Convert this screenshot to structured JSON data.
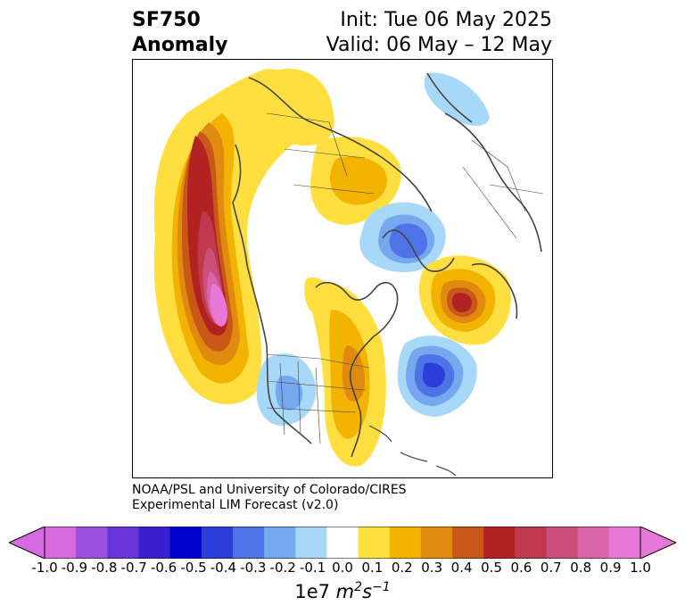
{
  "title": {
    "left_line1": "SF750",
    "left_line2": "Anomaly",
    "right_line1": "Init: Tue 06 May 2025",
    "right_line2": "Valid: 06 May – 12 May"
  },
  "credit": {
    "line1": "NOAA/PSL and University of Colorado/CIRES",
    "line2": "Experimental LIM Forecast (v2.0)"
  },
  "colorbar": {
    "units_prefix": "1e7",
    "units_m": "m",
    "units_m_exp": "2",
    "units_s": "s",
    "units_s_exp": "−1",
    "ticks": [
      "-1.0",
      "-0.9",
      "-0.8",
      "-0.7",
      "-0.6",
      "-0.5",
      "-0.4",
      "-0.3",
      "-0.2",
      "-0.1",
      "0.0",
      "0.1",
      "0.2",
      "0.3",
      "0.4",
      "0.5",
      "0.6",
      "0.7",
      "0.8",
      "0.9",
      "1.0"
    ],
    "colors": [
      "#d86ae0",
      "#9b4fde",
      "#6a35d8",
      "#3a1fd0",
      "#0000cc",
      "#2a3fd8",
      "#4e73e6",
      "#75a8ef",
      "#a8d8f8",
      "#ffffff",
      "#ffdf40",
      "#f2b400",
      "#e08a10",
      "#c95718",
      "#b22222",
      "#c0384c",
      "#cb4f7a",
      "#d865aa",
      "#e878d8"
    ]
  },
  "map_legend": {
    "contour_colors": {
      "yellow": "#ffdf40",
      "gold": "#f2b400",
      "orange": "#e08a10",
      "dark_orange": "#c95718",
      "red": "#b22222",
      "crimson": "#c0384c",
      "rose": "#cb4f7a",
      "pink": "#d865aa",
      "magenta": "#e878d8",
      "light_blue": "#a8d8f8",
      "sky_blue": "#75a8ef",
      "blue": "#4e73e6",
      "royal_blue": "#2a3fd8"
    },
    "coastline_color": "#444444"
  }
}
